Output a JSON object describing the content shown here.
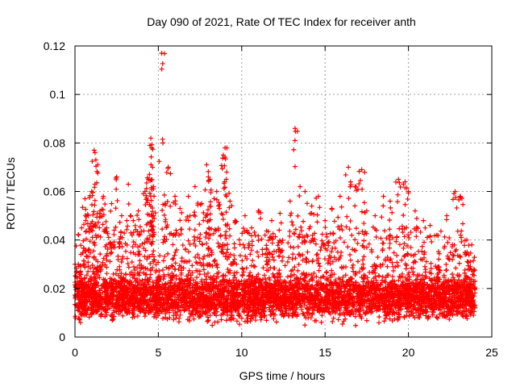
{
  "chart_data": {
    "type": "scatter",
    "title": "Day 090 of 2021, Rate Of TEC Index for receiver anth",
    "xlabel": "GPS time / hours",
    "ylabel": "ROTI / TECUs",
    "xlim": [
      0,
      25
    ],
    "ylim": [
      0,
      0.12
    ],
    "xticks": [
      0,
      5,
      10,
      15,
      20,
      25
    ],
    "xtick_labels": [
      "0",
      "5",
      "10",
      "15",
      "20",
      "25"
    ],
    "yticks": [
      0,
      0.02,
      0.04,
      0.06,
      0.08,
      0.1,
      0.12
    ],
    "ytick_labels": [
      "0",
      "0.02",
      "0.04",
      "0.06",
      "0.08",
      "0.1",
      "0.12"
    ],
    "grid": true,
    "marker": "plus",
    "color": "#ff0000",
    "series": [
      {
        "x": [
          0.2,
          0.4,
          0.6,
          0.8,
          1.0,
          1.15,
          1.2,
          1.25,
          1.5,
          1.7,
          1.9,
          2.2,
          2.5,
          2.8,
          3.2,
          3.5,
          3.8,
          4.2,
          4.4,
          4.5,
          4.55,
          4.6,
          4.65,
          4.7,
          5.2,
          5.4,
          5.6,
          6.0,
          6.3,
          6.8,
          7.2,
          7.6,
          7.9,
          8.0,
          8.1,
          8.5,
          8.9,
          9.0,
          9.1,
          9.3,
          9.6,
          10.2,
          10.6,
          11.0,
          11.4,
          11.8,
          12.3,
          12.9,
          13.2,
          13.5,
          13.8,
          14.2,
          14.6,
          15.0,
          15.4,
          15.9,
          16.4,
          16.8,
          17.2,
          17.5,
          18.0,
          18.5,
          18.9,
          19.4,
          19.8,
          20.0,
          20.4,
          20.9,
          21.3,
          21.7,
          22.3,
          22.8,
          23.1,
          23.5,
          23.8
        ],
        "y": [
          0.03,
          0.045,
          0.057,
          0.05,
          0.06,
          0.077,
          0.076,
          0.073,
          0.052,
          0.058,
          0.045,
          0.055,
          0.066,
          0.05,
          0.063,
          0.048,
          0.052,
          0.06,
          0.065,
          0.079,
          0.082,
          0.078,
          0.07,
          0.062,
          0.117,
          0.055,
          0.07,
          0.058,
          0.053,
          0.058,
          0.062,
          0.055,
          0.071,
          0.066,
          0.065,
          0.06,
          0.075,
          0.078,
          0.068,
          0.056,
          0.048,
          0.05,
          0.045,
          0.052,
          0.042,
          0.048,
          0.051,
          0.056,
          0.086,
          0.062,
          0.06,
          0.054,
          0.058,
          0.048,
          0.053,
          0.058,
          0.07,
          0.062,
          0.069,
          0.052,
          0.05,
          0.058,
          0.056,
          0.065,
          0.064,
          0.06,
          0.052,
          0.048,
          0.046,
          0.042,
          0.05,
          0.06,
          0.058,
          0.04,
          0.038
        ],
        "bulk": {
          "x_range": [
            0,
            24
          ],
          "baseline_y": [
            0.004,
            0.028
          ],
          "typical_y": 0.015
        }
      }
    ]
  }
}
